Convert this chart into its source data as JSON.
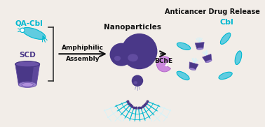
{
  "bg_color": "#f2ede8",
  "purple_dark": "#4a3888",
  "purple_mid": "#6a52a8",
  "purple_light": "#9880cc",
  "purple_highlight": "#7860b8",
  "cyan_bright": "#00b8d0",
  "cyan_light": "#60cce0",
  "cyan_pale": "#a8e8f4",
  "cyan_very_pale": "#d0f4fc",
  "pink_purple": "#b060c8",
  "pink_light": "#cc88dd",
  "title": "Anticancer Drug Release",
  "label_scd": "SCD",
  "label_qa": "QA-Cbl",
  "label_nano": "Nanoparticles",
  "label_bche": "BChE",
  "label_cbl": "Cbl",
  "label_amp1": "Amphiphilic",
  "label_amp2": "Assembly"
}
